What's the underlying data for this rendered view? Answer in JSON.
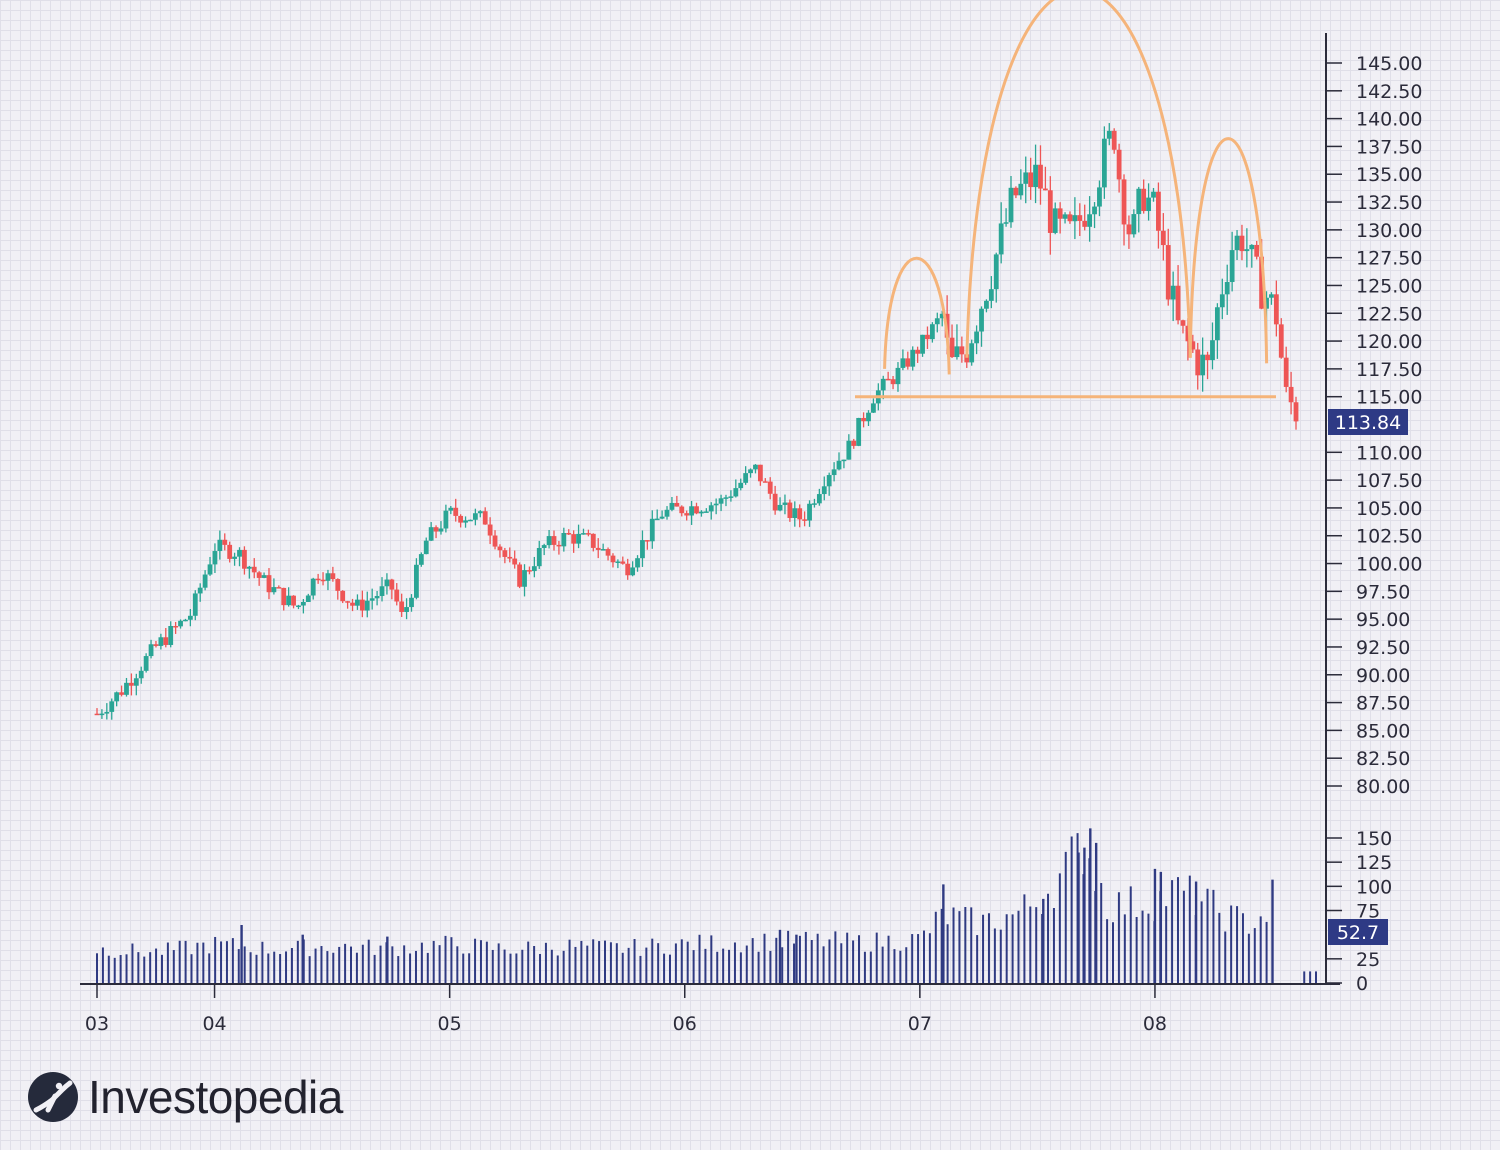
{
  "brand": {
    "name": "Investopedia",
    "mark_icon": "investopedia-logo-icon"
  },
  "colors": {
    "up": "#2aa595",
    "down": "#ee5555",
    "pattern": "#f5b47a",
    "volume": "#2f3a82",
    "badge": "#2e3a85",
    "axis": "#2b2b3a"
  },
  "chart_data": {
    "type": "candlestick",
    "price_axis": {
      "position": "right",
      "ticks": [
        "145.00",
        "142.50",
        "140.00",
        "137.50",
        "135.00",
        "132.50",
        "130.00",
        "127.50",
        "125.00",
        "122.50",
        "120.00",
        "117.50",
        "115.00",
        "110.00",
        "107.50",
        "105.00",
        "102.50",
        "100.00",
        "97.50",
        "95.00",
        "92.50",
        "90.00",
        "87.50",
        "85.00",
        "82.50",
        "80.00"
      ],
      "range": [
        80,
        145
      ]
    },
    "volume_axis": {
      "position": "right",
      "ticks": [
        "150",
        "125",
        "100",
        "75",
        "25",
        "0"
      ],
      "range": [
        0,
        150
      ]
    },
    "x_axis": {
      "ticks": [
        {
          "label": "03",
          "pos": 0.0
        },
        {
          "label": "04",
          "pos": 0.1
        },
        {
          "label": "05",
          "pos": 0.3
        },
        {
          "label": "06",
          "pos": 0.5
        },
        {
          "label": "07",
          "pos": 0.7
        },
        {
          "label": "08",
          "pos": 0.9
        }
      ]
    },
    "last_price": "113.84",
    "last_volume": "52.7",
    "price_anchors": [
      [
        0.0,
        86.5
      ],
      [
        0.02,
        88.5
      ],
      [
        0.05,
        92.5
      ],
      [
        0.08,
        95.5
      ],
      [
        0.1,
        101.5
      ],
      [
        0.12,
        101.0
      ],
      [
        0.14,
        98.5
      ],
      [
        0.17,
        96.0
      ],
      [
        0.19,
        99.5
      ],
      [
        0.22,
        96.0
      ],
      [
        0.25,
        98.0
      ],
      [
        0.26,
        95.0
      ],
      [
        0.28,
        102.0
      ],
      [
        0.3,
        104.5
      ],
      [
        0.33,
        104.0
      ],
      [
        0.35,
        100.0
      ],
      [
        0.36,
        98.5
      ],
      [
        0.38,
        101.5
      ],
      [
        0.4,
        102.5
      ],
      [
        0.42,
        102.0
      ],
      [
        0.45,
        99.5
      ],
      [
        0.48,
        104.5
      ],
      [
        0.5,
        105.0
      ],
      [
        0.53,
        105.5
      ],
      [
        0.56,
        108.5
      ],
      [
        0.58,
        105.0
      ],
      [
        0.6,
        104.0
      ],
      [
        0.62,
        108.0
      ],
      [
        0.64,
        110.5
      ],
      [
        0.66,
        115.0
      ],
      [
        0.68,
        117.0
      ],
      [
        0.7,
        119.5
      ],
      [
        0.72,
        122.5
      ],
      [
        0.725,
        117.5
      ],
      [
        0.74,
        119.5
      ],
      [
        0.76,
        126.0
      ],
      [
        0.78,
        133.0
      ],
      [
        0.8,
        135.0
      ],
      [
        0.815,
        130.0
      ],
      [
        0.83,
        129.5
      ],
      [
        0.845,
        133.0
      ],
      [
        0.86,
        137.5
      ],
      [
        0.865,
        139.0
      ],
      [
        0.87,
        134.5
      ],
      [
        0.88,
        129.0
      ],
      [
        0.89,
        133.5
      ],
      [
        0.9,
        131.5
      ],
      [
        0.91,
        126.0
      ],
      [
        0.92,
        121.0
      ],
      [
        0.935,
        118.5
      ],
      [
        0.945,
        117.5
      ],
      [
        0.955,
        124.0
      ],
      [
        0.965,
        128.5
      ],
      [
        0.975,
        129.5
      ],
      [
        0.985,
        126.0
      ],
      [
        0.995,
        124.0
      ],
      [
        1.005,
        122.0
      ],
      [
        1.01,
        115.0
      ],
      [
        1.02,
        113.84
      ]
    ],
    "volume_anchors": [
      [
        0.0,
        35
      ],
      [
        0.05,
        32
      ],
      [
        0.1,
        40
      ],
      [
        0.15,
        35
      ],
      [
        0.2,
        38
      ],
      [
        0.25,
        36
      ],
      [
        0.3,
        40
      ],
      [
        0.35,
        35
      ],
      [
        0.4,
        38
      ],
      [
        0.45,
        36
      ],
      [
        0.5,
        40
      ],
      [
        0.55,
        42
      ],
      [
        0.6,
        44
      ],
      [
        0.65,
        42
      ],
      [
        0.7,
        45
      ],
      [
        0.72,
        70
      ],
      [
        0.75,
        62
      ],
      [
        0.78,
        70
      ],
      [
        0.8,
        85
      ],
      [
        0.82,
        110
      ],
      [
        0.84,
        145
      ],
      [
        0.86,
        80
      ],
      [
        0.88,
        82
      ],
      [
        0.9,
        85
      ],
      [
        0.92,
        95
      ],
      [
        0.94,
        85
      ],
      [
        0.96,
        70
      ],
      [
        0.98,
        62
      ],
      [
        1.0,
        75
      ],
      [
        1.01,
        80
      ],
      [
        1.02,
        10
      ]
    ],
    "spike_volumes": [
      [
        0.123,
        60
      ],
      [
        0.175,
        50
      ],
      [
        0.247,
        48
      ],
      [
        0.581,
        55
      ],
      [
        0.595,
        50
      ],
      [
        0.72,
        102
      ],
      [
        0.805,
        87
      ],
      [
        0.835,
        135
      ],
      [
        0.84,
        140
      ],
      [
        0.845,
        160
      ],
      [
        0.85,
        145
      ],
      [
        0.9,
        118
      ],
      [
        0.905,
        115
      ],
      [
        0.935,
        105
      ],
      [
        1.0,
        107
      ]
    ],
    "pattern": {
      "neckline": 115.0,
      "left_shoulder": {
        "x": [
          0.67,
          0.725
        ],
        "peak": 124.5,
        "start": 117.5,
        "end": 117.0
      },
      "head": {
        "x": [
          0.74,
          0.93
        ],
        "peak": 141.0,
        "start": 118.5,
        "end": 118.5
      },
      "right_shoulder": {
        "x": [
          0.93,
          0.995
        ],
        "peak": 132.0,
        "start": 118.5,
        "end": 118.0
      }
    }
  }
}
